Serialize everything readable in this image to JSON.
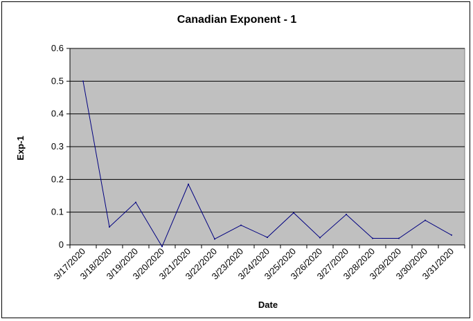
{
  "chart_data": {
    "type": "line",
    "title": "Canadian Exponent - 1",
    "xlabel": "Date",
    "ylabel": "Exp-1",
    "categories": [
      "3/17/2020",
      "3/18/2020",
      "3/19/2020",
      "3/20/2020",
      "3/21/2020",
      "3/22/2020",
      "3/23/2020",
      "3/24/2020",
      "3/25/2020",
      "3/26/2020",
      "3/27/2020",
      "3/28/2020",
      "3/29/2020",
      "3/30/2020",
      "3/31/2020"
    ],
    "series": [
      {
        "values": [
          0.5,
          0.055,
          0.13,
          -0.005,
          0.185,
          0.018,
          0.06,
          0.023,
          0.098,
          0.022,
          0.093,
          0.02,
          0.02,
          0.075,
          0.03
        ]
      }
    ],
    "ylim": [
      0,
      0.6
    ],
    "yticks": [
      "0",
      "0.1",
      "0.2",
      "0.3",
      "0.4",
      "0.5",
      "0.6"
    ],
    "grid": true,
    "legend": "none",
    "colors": {
      "plot_background": "#c0c0c0",
      "line": "#000080",
      "gridline": "#000000"
    }
  }
}
